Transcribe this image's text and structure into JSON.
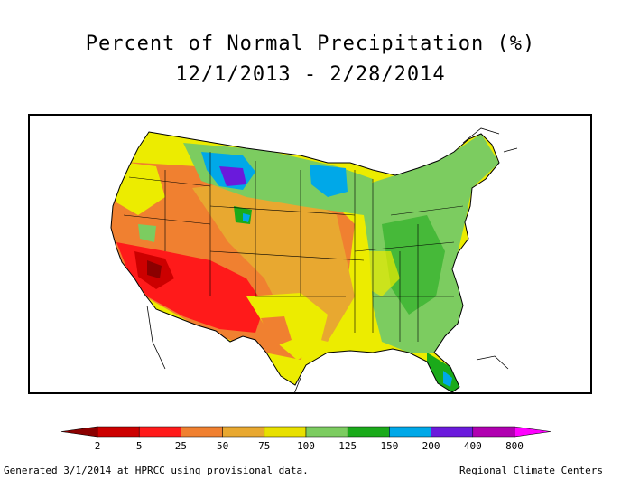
{
  "title": {
    "line1": "Percent of Normal Precipitation (%)",
    "line2": "12/1/2013 - 2/28/2014"
  },
  "legend": {
    "tick_labels": [
      "2",
      "5",
      "25",
      "50",
      "75",
      "100",
      "125",
      "150",
      "200",
      "400",
      "800"
    ],
    "colors": [
      "#8b0000",
      "#cc0000",
      "#ff1a1a",
      "#f08030",
      "#e8a830",
      "#e8e000",
      "#7ccc60",
      "#1aaa1a",
      "#00a8e8",
      "#6a1adc",
      "#b000b0",
      "#ff00ff"
    ]
  },
  "footer": {
    "left": "Generated 3/1/2014 at HPRCC using provisional data.",
    "right": "Regional Climate Centers"
  }
}
